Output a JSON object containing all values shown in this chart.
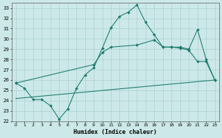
{
  "xlabel": "Humidex (Indice chaleur)",
  "xlim": [
    -0.5,
    23.5
  ],
  "ylim": [
    22,
    33.5
  ],
  "yticks": [
    22,
    23,
    24,
    25,
    26,
    27,
    28,
    29,
    30,
    31,
    32,
    33
  ],
  "xticks": [
    0,
    1,
    2,
    3,
    4,
    5,
    6,
    7,
    8,
    9,
    10,
    11,
    12,
    13,
    14,
    15,
    16,
    17,
    18,
    19,
    20,
    21,
    22,
    23
  ],
  "bg_color": "#cce8e8",
  "grid_color": "#aad0d0",
  "line_color": "#1a7a6e",
  "line_width": 0.8,
  "series": [
    {
      "x": [
        0,
        1,
        2,
        3,
        4,
        5,
        6,
        7,
        8,
        9,
        10,
        11,
        12,
        13,
        14,
        15,
        16,
        17,
        18,
        19,
        20,
        21,
        22,
        23
      ],
      "y": [
        25.7,
        25.2,
        24.1,
        24.1,
        23.5,
        22.2,
        23.2,
        25.2,
        26.5,
        27.2,
        29.1,
        31.1,
        32.2,
        32.6,
        33.3,
        31.6,
        30.4,
        29.2,
        29.2,
        29.1,
        28.9,
        27.8,
        27.8,
        26.0
      ],
      "has_markers": true
    },
    {
      "x": [
        0,
        9,
        10,
        11,
        14,
        16,
        17,
        18,
        19,
        20,
        21,
        22,
        23
      ],
      "y": [
        25.7,
        27.5,
        28.7,
        29.2,
        29.4,
        29.9,
        29.2,
        29.2,
        29.2,
        29.0,
        30.9,
        28.0,
        26.0
      ],
      "has_markers": true
    },
    {
      "x": [
        0,
        23
      ],
      "y": [
        24.2,
        26.0
      ],
      "has_markers": false
    }
  ]
}
